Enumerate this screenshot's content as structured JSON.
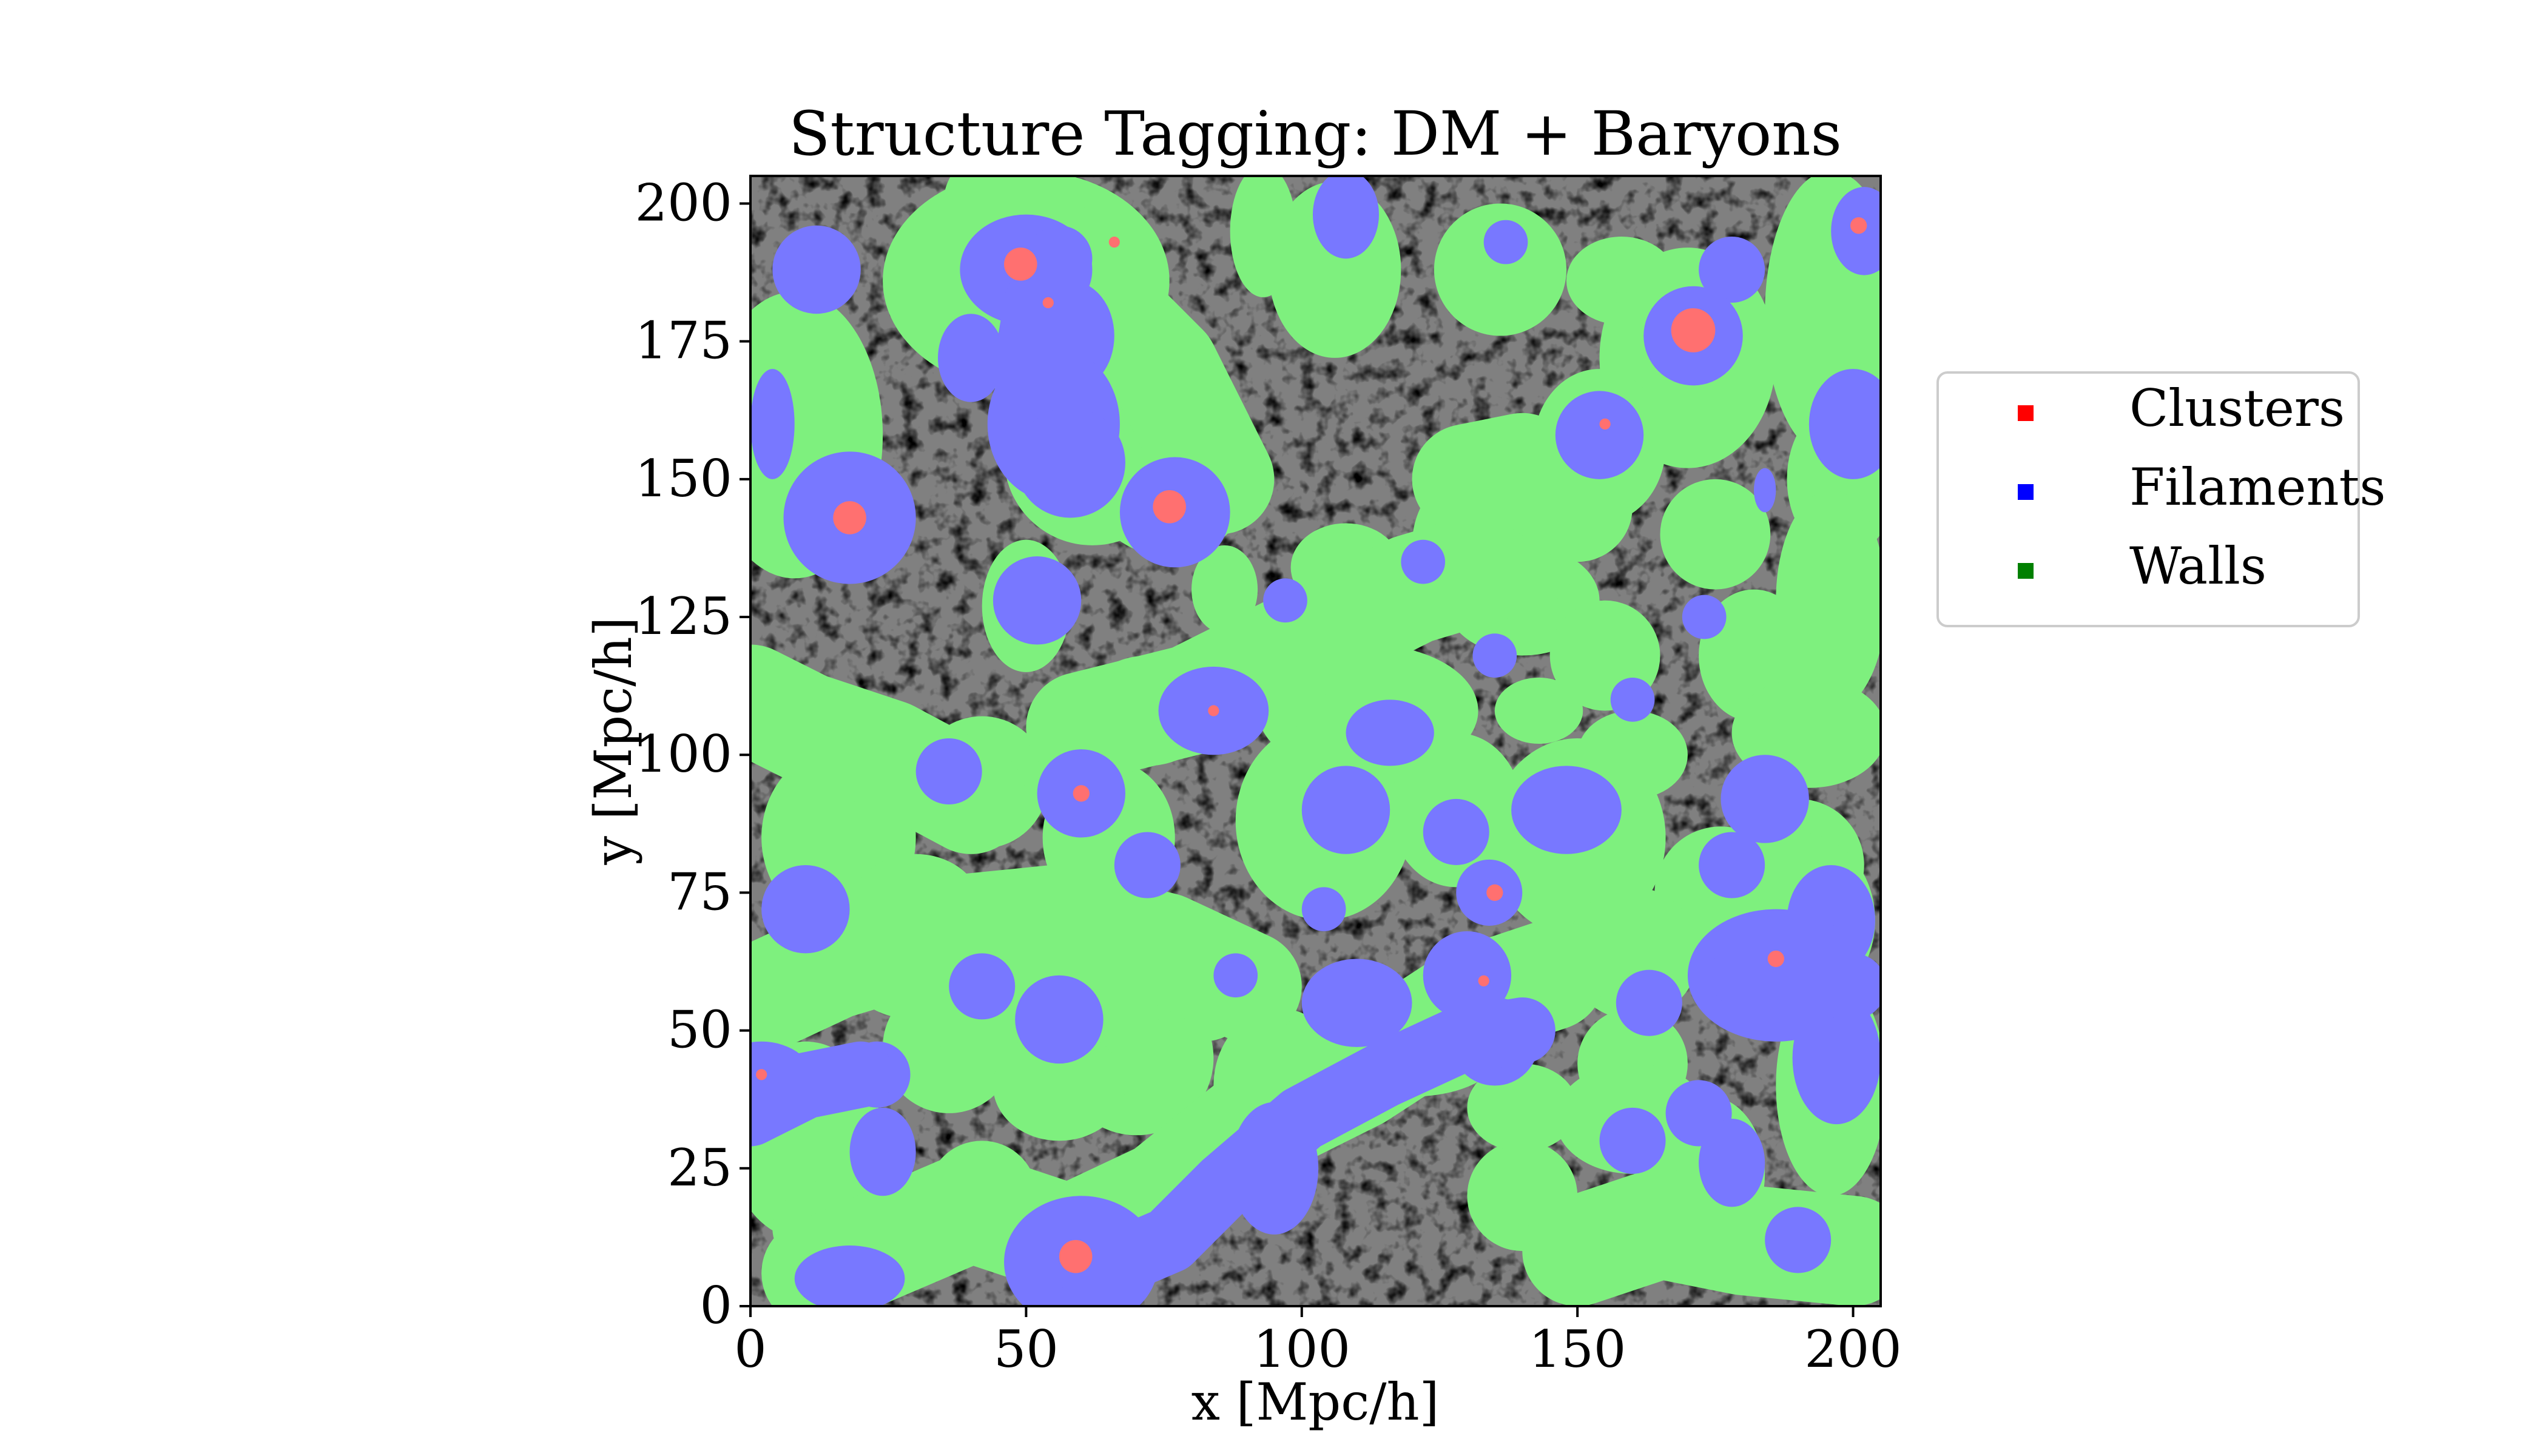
{
  "chart_data": {
    "type": "heatmap",
    "title": "Structure Tagging: DM + Baryons",
    "xlabel": "x [Mpc/h]",
    "ylabel": "y [Mpc/h]",
    "xlim": [
      0,
      205
    ],
    "ylim": [
      0,
      205
    ],
    "xticks": [
      0,
      50,
      100,
      150,
      200
    ],
    "yticks": [
      0,
      25,
      50,
      75,
      100,
      125,
      150,
      175,
      200
    ],
    "grid": false,
    "legend_position": "right-outside",
    "background_color": "#808080",
    "legend": [
      {
        "label": "Clusters",
        "color": "#ff0000"
      },
      {
        "label": "Filaments",
        "color": "#0000ff"
      },
      {
        "label": "Walls",
        "color": "#008000"
      }
    ],
    "walls": [
      [
        50,
        186,
        26,
        20
      ],
      [
        8,
        158,
        16,
        26
      ],
      [
        64,
        192,
        8,
        8
      ],
      [
        93,
        195,
        6,
        12
      ],
      [
        106,
        188,
        12,
        16
      ],
      [
        136,
        188,
        12,
        12
      ],
      [
        158,
        186,
        10,
        8
      ],
      [
        170,
        172,
        16,
        20
      ],
      [
        196,
        180,
        12,
        26
      ],
      [
        198,
        150,
        10,
        14
      ],
      [
        154,
        156,
        12,
        14
      ],
      [
        76,
        148,
        14,
        12
      ],
      [
        62,
        154,
        16,
        16
      ],
      [
        132,
        138,
        12,
        14
      ],
      [
        108,
        134,
        10,
        8
      ],
      [
        140,
        128,
        14,
        10
      ],
      [
        155,
        118,
        10,
        10
      ],
      [
        182,
        118,
        10,
        12
      ],
      [
        196,
        128,
        10,
        20
      ],
      [
        50,
        127,
        8,
        12
      ],
      [
        112,
        108,
        20,
        12
      ],
      [
        143,
        108,
        8,
        6
      ],
      [
        192,
        104,
        14,
        10
      ],
      [
        65,
        85,
        12,
        14
      ],
      [
        42,
        95,
        12,
        12
      ],
      [
        16,
        85,
        14,
        16
      ],
      [
        30,
        72,
        12,
        10
      ],
      [
        104,
        88,
        16,
        18
      ],
      [
        128,
        90,
        12,
        14
      ],
      [
        150,
        85,
        16,
        18
      ],
      [
        190,
        80,
        12,
        12
      ],
      [
        176,
        75,
        12,
        12
      ],
      [
        36,
        47,
        12,
        12
      ],
      [
        50,
        57,
        22,
        14
      ],
      [
        70,
        45,
        14,
        14
      ],
      [
        96,
        40,
        12,
        14
      ],
      [
        160,
        64,
        12,
        12
      ],
      [
        138,
        58,
        10,
        8
      ],
      [
        160,
        44,
        10,
        10
      ],
      [
        190,
        70,
        14,
        16
      ],
      [
        174,
        24,
        10,
        14
      ],
      [
        196,
        40,
        10,
        20
      ],
      [
        10,
        30,
        14,
        18
      ],
      [
        30,
        60,
        12,
        8
      ],
      [
        42,
        20,
        10,
        10
      ],
      [
        120,
        46,
        16,
        8
      ],
      [
        140,
        20,
        10,
        10
      ],
      [
        20,
        14,
        16,
        10
      ],
      [
        82,
        58,
        10,
        10
      ],
      [
        56,
        40,
        12,
        10
      ],
      [
        160,
        34,
        14,
        10
      ],
      [
        160,
        100,
        10,
        8
      ],
      [
        86,
        130,
        6,
        8
      ],
      [
        96,
        120,
        8,
        8
      ],
      [
        140,
        36,
        10,
        8
      ],
      [
        72,
        108,
        12,
        10
      ],
      [
        175,
        140,
        10,
        10
      ]
    ],
    "wall_bands": [
      [
        [
          12,
          6
        ],
        [
          40,
          18
        ],
        [
          58,
          12
        ],
        [
          75,
          20
        ],
        [
          90,
          32
        ],
        [
          110,
          42
        ],
        [
          130,
          55
        ],
        [
          145,
          60
        ]
      ],
      [
        [
          0,
          55
        ],
        [
          15,
          62
        ],
        [
          35,
          68
        ],
        [
          55,
          70
        ],
        [
          75,
          65
        ],
        [
          90,
          58
        ]
      ],
      [
        [
          60,
          105
        ],
        [
          80,
          110
        ],
        [
          100,
          120
        ],
        [
          120,
          130
        ],
        [
          140,
          136
        ]
      ],
      [
        [
          45,
          200
        ],
        [
          60,
          185
        ],
        [
          75,
          170
        ],
        [
          85,
          150
        ]
      ],
      [
        [
          130,
          150
        ],
        [
          140,
          152
        ],
        [
          150,
          145
        ]
      ],
      [
        [
          0,
          110
        ],
        [
          10,
          105
        ],
        [
          25,
          100
        ],
        [
          40,
          92
        ]
      ],
      [
        [
          150,
          10
        ],
        [
          165,
          15
        ],
        [
          180,
          12
        ],
        [
          200,
          10
        ]
      ]
    ],
    "filaments": [
      [
        50,
        188,
        12,
        10
      ],
      [
        58,
        176,
        8,
        10
      ],
      [
        55,
        160,
        12,
        14
      ],
      [
        40,
        172,
        6,
        8
      ],
      [
        18,
        143,
        12,
        12
      ],
      [
        4,
        160,
        4,
        10
      ],
      [
        12,
        188,
        8,
        8
      ],
      [
        77,
        144,
        10,
        10
      ],
      [
        58,
        153,
        10,
        10
      ],
      [
        108,
        198,
        6,
        8
      ],
      [
        137,
        193,
        4,
        4
      ],
      [
        178,
        188,
        6,
        6
      ],
      [
        202,
        195,
        6,
        8
      ],
      [
        200,
        160,
        8,
        10
      ],
      [
        154,
        158,
        8,
        8
      ],
      [
        171,
        176,
        9,
        9
      ],
      [
        52,
        128,
        8,
        8
      ],
      [
        84,
        108,
        10,
        8
      ],
      [
        60,
        93,
        8,
        8
      ],
      [
        36,
        97,
        6,
        6
      ],
      [
        116,
        104,
        8,
        6
      ],
      [
        128,
        86,
        6,
        6
      ],
      [
        148,
        90,
        10,
        8
      ],
      [
        134,
        75,
        6,
        6
      ],
      [
        108,
        90,
        8,
        8
      ],
      [
        184,
        92,
        8,
        8
      ],
      [
        178,
        80,
        6,
        6
      ],
      [
        196,
        70,
        8,
        10
      ],
      [
        186,
        60,
        16,
        12
      ],
      [
        197,
        45,
        8,
        12
      ],
      [
        163,
        55,
        6,
        6
      ],
      [
        10,
        72,
        8,
        8
      ],
      [
        24,
        28,
        6,
        8
      ],
      [
        2,
        40,
        10,
        8
      ],
      [
        23,
        42,
        6,
        6
      ],
      [
        42,
        58,
        6,
        6
      ],
      [
        56,
        52,
        8,
        8
      ],
      [
        60,
        8,
        14,
        12
      ],
      [
        95,
        25,
        8,
        12
      ],
      [
        135,
        48,
        8,
        8
      ],
      [
        110,
        55,
        10,
        8
      ],
      [
        130,
        60,
        8,
        8
      ],
      [
        172,
        35,
        6,
        6
      ],
      [
        178,
        26,
        6,
        8
      ],
      [
        190,
        12,
        6,
        6
      ],
      [
        18,
        5,
        10,
        6
      ],
      [
        72,
        80,
        6,
        6
      ],
      [
        97,
        128,
        4,
        4
      ],
      [
        173,
        125,
        4,
        4
      ],
      [
        160,
        110,
        4,
        4
      ],
      [
        135,
        118,
        4,
        4
      ],
      [
        88,
        60,
        4,
        4
      ],
      [
        104,
        72,
        4,
        4
      ],
      [
        184,
        148,
        2,
        4
      ],
      [
        122,
        135,
        4,
        4
      ],
      [
        160,
        30,
        6,
        6
      ]
    ],
    "filament_bands": [
      [
        [
          62,
          6
        ],
        [
          76,
          12
        ],
        [
          86,
          22
        ],
        [
          100,
          34
        ],
        [
          115,
          42
        ],
        [
          128,
          48
        ],
        [
          140,
          50
        ]
      ],
      [
        [
          50,
          170
        ],
        [
          52,
          182
        ],
        [
          56,
          190
        ]
      ],
      [
        [
          0,
          35
        ],
        [
          10,
          40
        ],
        [
          20,
          42
        ]
      ],
      [
        [
          180,
          60
        ],
        [
          200,
          58
        ]
      ]
    ],
    "clusters": [
      [
        49,
        189,
        3,
        3
      ],
      [
        54,
        182,
        1,
        1
      ],
      [
        18,
        143,
        3,
        3
      ],
      [
        76,
        145,
        3,
        3
      ],
      [
        171,
        177,
        4,
        4
      ],
      [
        201,
        196,
        1.5,
        1.5
      ],
      [
        155,
        160,
        1,
        1
      ],
      [
        66,
        193,
        1,
        1
      ],
      [
        60,
        93,
        1.5,
        1.5
      ],
      [
        84,
        108,
        1,
        1
      ],
      [
        135,
        75,
        1.5,
        1.5
      ],
      [
        133,
        59,
        1,
        1
      ],
      [
        186,
        63,
        1.5,
        1.5
      ],
      [
        59,
        9,
        3,
        3
      ],
      [
        2,
        42,
        1,
        1
      ]
    ]
  }
}
